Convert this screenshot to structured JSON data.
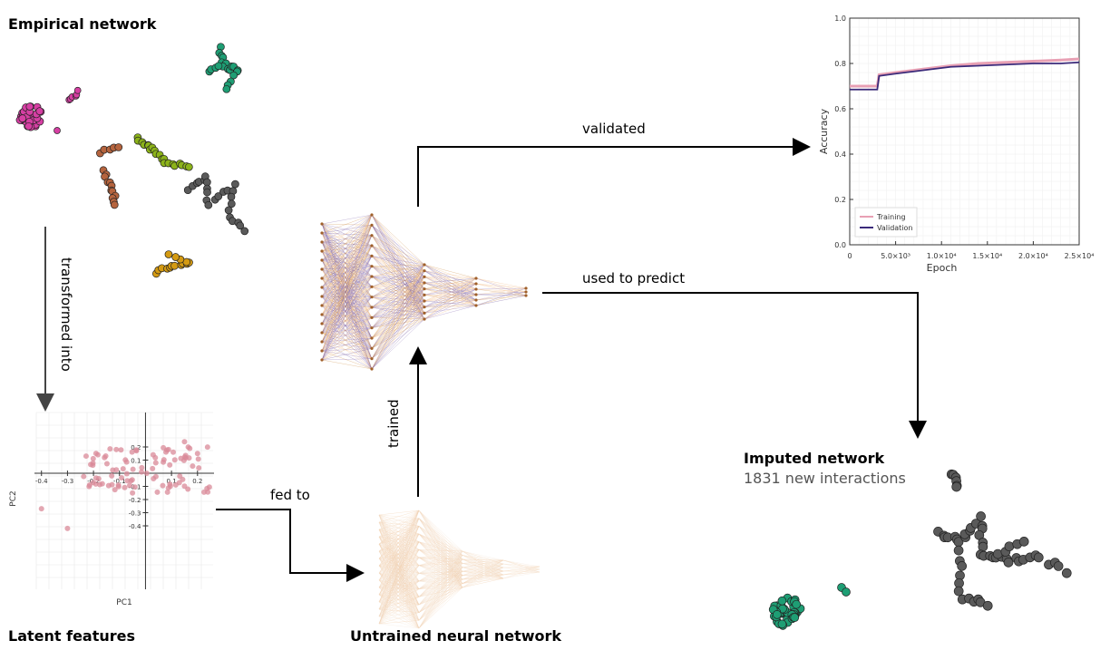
{
  "labels": {
    "empirical": "Empirical network",
    "latent": "Latent features",
    "untrained": "Untrained neural network",
    "imputed": "Imputed network",
    "imputed_sub": "1831 new interactions"
  },
  "edges": {
    "transformed": "transformed into",
    "fed": "fed to",
    "trained": "trained",
    "validated": "validated",
    "predict": "used to predict"
  },
  "pca": {
    "xlabel": "PC1",
    "ylabel": "PC2",
    "xticks": [
      "-0.4",
      "-0.3",
      "-0.2",
      "-0.1",
      "0.1",
      "0.2"
    ],
    "yticks": [
      "0.2",
      "0.1",
      "-0.1",
      "-0.2",
      "-0.3",
      "-0.4"
    ]
  },
  "chart_data": {
    "type": "line",
    "xlabel": "Epoch",
    "ylabel": "Accuracy",
    "ylim": [
      0,
      1.0
    ],
    "xlim": [
      0,
      25000
    ],
    "yticks": [
      "0.0",
      "0.2",
      "0.4",
      "0.6",
      "0.8",
      "1.0"
    ],
    "xticks": [
      "0",
      "5.0×10³",
      "1.0×10⁴",
      "1.5×10⁴",
      "2.0×10⁴",
      "2.5×10⁴"
    ],
    "legend": "bottom-left",
    "grid": true,
    "series": [
      {
        "name": "Training",
        "color": "#e8a0b4",
        "x": [
          0,
          3000,
          3200,
          5000,
          8000,
          11000,
          14000,
          17000,
          20000,
          23000,
          25000
        ],
        "y": [
          0.7,
          0.7,
          0.75,
          0.76,
          0.775,
          0.79,
          0.8,
          0.805,
          0.81,
          0.815,
          0.82
        ]
      },
      {
        "name": "Validation",
        "color": "#3b2a7a",
        "x": [
          0,
          3000,
          3200,
          5000,
          8000,
          11000,
          14000,
          17000,
          20000,
          23000,
          25000
        ],
        "y": [
          0.685,
          0.685,
          0.745,
          0.755,
          0.77,
          0.785,
          0.79,
          0.795,
          0.8,
          0.8,
          0.805
        ]
      }
    ]
  }
}
